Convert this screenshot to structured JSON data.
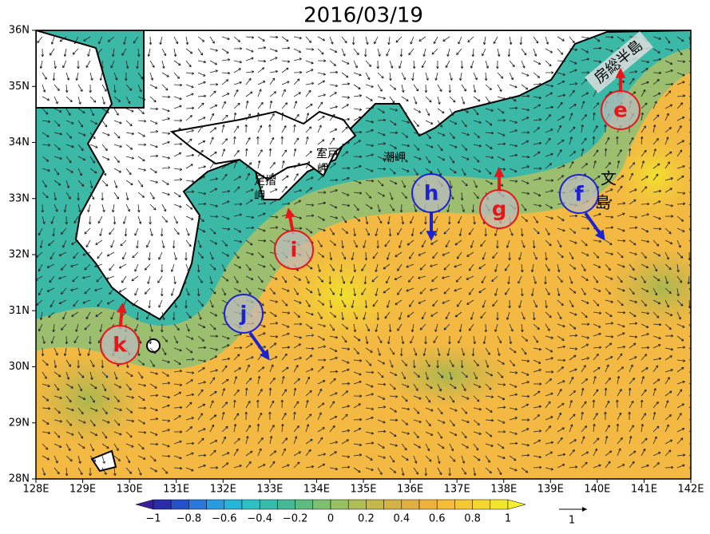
{
  "title": "2016/03/19",
  "lat_labels": [
    "28N",
    "29N",
    "30N",
    "31N",
    "32N",
    "33N",
    "34N",
    "35N",
    "36N"
  ],
  "lon_labels": [
    "128E",
    "129E",
    "130E",
    "131E",
    "132E",
    "133E",
    "134E",
    "135E",
    "136E",
    "137E",
    "138E",
    "139E",
    "140E",
    "141E",
    "142E"
  ],
  "colorbar_labels": [
    "−1",
    "−0.8",
    "−0.6",
    "−0.4",
    "−0.2",
    "0",
    "0.2",
    "0.4",
    "0.6",
    "0.8",
    "1"
  ],
  "vector_scale": "1",
  "places": {
    "boso": "房総半島",
    "muroto": [
      "室戸",
      "岬"
    ],
    "ashizuri": [
      "足摺",
      "岬"
    ],
    "shiono": "潮岬",
    "hachijo": [
      "文",
      "島"
    ]
  },
  "markers": [
    {
      "label": "e",
      "color": "red"
    },
    {
      "label": "f",
      "color": "blue"
    },
    {
      "label": "g",
      "color": "red"
    },
    {
      "label": "h",
      "color": "blue"
    },
    {
      "label": "i",
      "color": "red"
    },
    {
      "label": "j",
      "color": "blue"
    },
    {
      "label": "k",
      "color": "red"
    }
  ]
}
